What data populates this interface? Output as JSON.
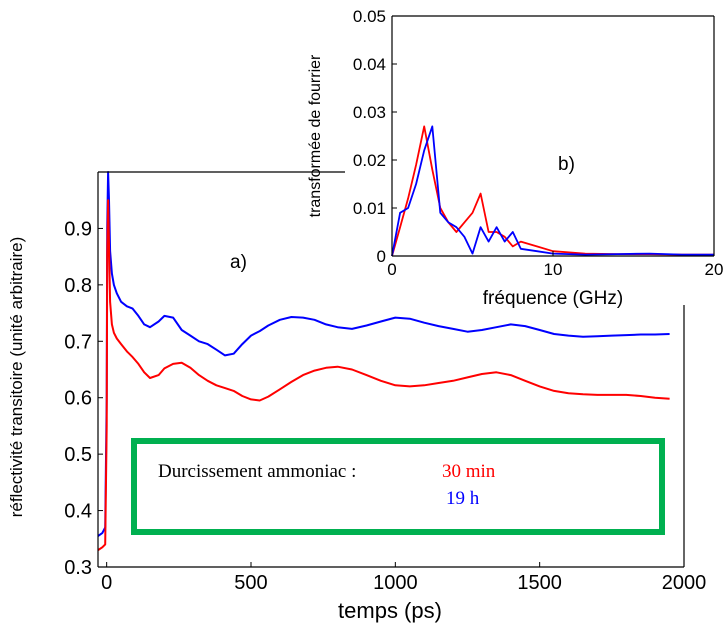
{
  "chart_data": [
    {
      "type": "line",
      "panel_label": "a)",
      "xlabel": "temps (ps)",
      "ylabel": "réflectivité transitoire (unité arbitraire)",
      "xlim": [
        -30,
        2000
      ],
      "ylim": [
        0.3,
        1.0
      ],
      "xticks": [
        "0",
        "500",
        "1000",
        "1500",
        "2000"
      ],
      "yticks": [
        "0.3",
        "0.4",
        "0.5",
        "0.6",
        "0.7",
        "0.8",
        "0.9"
      ],
      "series": [
        {
          "name": "19 h",
          "color": "#0000ff",
          "x": [
            -30,
            -15,
            -5,
            0,
            2,
            5,
            8,
            12,
            18,
            25,
            35,
            50,
            70,
            90,
            110,
            130,
            150,
            180,
            200,
            230,
            260,
            290,
            320,
            350,
            380,
            410,
            440,
            470,
            500,
            530,
            560,
            600,
            640,
            680,
            720,
            760,
            800,
            850,
            900,
            950,
            1000,
            1050,
            1100,
            1150,
            1200,
            1250,
            1300,
            1350,
            1400,
            1450,
            1500,
            1550,
            1600,
            1650,
            1700,
            1750,
            1800,
            1850,
            1900,
            1950
          ],
          "y": [
            0.355,
            0.36,
            0.37,
            0.6,
            0.9,
            1.0,
            0.95,
            0.86,
            0.82,
            0.8,
            0.785,
            0.77,
            0.762,
            0.758,
            0.745,
            0.73,
            0.725,
            0.735,
            0.745,
            0.742,
            0.72,
            0.71,
            0.7,
            0.695,
            0.685,
            0.675,
            0.678,
            0.695,
            0.71,
            0.718,
            0.728,
            0.738,
            0.743,
            0.742,
            0.738,
            0.73,
            0.725,
            0.722,
            0.728,
            0.735,
            0.742,
            0.74,
            0.733,
            0.727,
            0.722,
            0.717,
            0.72,
            0.725,
            0.73,
            0.727,
            0.72,
            0.713,
            0.71,
            0.708,
            0.709,
            0.71,
            0.711,
            0.712,
            0.712,
            0.713
          ]
        },
        {
          "name": "30 min",
          "color": "#ff0000",
          "x": [
            -30,
            -15,
            -5,
            0,
            2,
            5,
            8,
            12,
            18,
            25,
            35,
            50,
            70,
            90,
            110,
            130,
            150,
            180,
            200,
            230,
            260,
            290,
            320,
            350,
            380,
            410,
            440,
            470,
            500,
            530,
            560,
            600,
            640,
            680,
            720,
            760,
            800,
            850,
            900,
            950,
            1000,
            1050,
            1100,
            1150,
            1200,
            1250,
            1300,
            1350,
            1400,
            1450,
            1500,
            1550,
            1600,
            1650,
            1700,
            1750,
            1800,
            1850,
            1900,
            1950
          ],
          "y": [
            0.33,
            0.335,
            0.34,
            0.55,
            0.85,
            0.95,
            0.87,
            0.77,
            0.73,
            0.715,
            0.705,
            0.695,
            0.682,
            0.672,
            0.66,
            0.645,
            0.635,
            0.64,
            0.652,
            0.66,
            0.662,
            0.653,
            0.64,
            0.63,
            0.622,
            0.617,
            0.612,
            0.603,
            0.597,
            0.595,
            0.602,
            0.615,
            0.628,
            0.64,
            0.648,
            0.653,
            0.655,
            0.65,
            0.64,
            0.63,
            0.622,
            0.62,
            0.622,
            0.626,
            0.63,
            0.636,
            0.642,
            0.645,
            0.64,
            0.63,
            0.62,
            0.612,
            0.608,
            0.606,
            0.605,
            0.605,
            0.605,
            0.603,
            0.6,
            0.598
          ]
        }
      ],
      "annotation": {
        "prefix": "Durcissement ammoniac :",
        "red_label": "30 min",
        "blue_label": "19 h",
        "box_color": "#00b050"
      }
    },
    {
      "type": "line",
      "panel_label": "b)",
      "xlabel": "fréquence (GHz)",
      "ylabel": "transformée de fourrier",
      "xlim": [
        0,
        20
      ],
      "ylim": [
        0,
        0.05
      ],
      "xticks": [
        "0",
        "10",
        "20"
      ],
      "yticks": [
        "0",
        "0.01",
        "0.02",
        "0.03",
        "0.04",
        "0.05"
      ],
      "series": [
        {
          "name": "",
          "color": "#ff0000",
          "x": [
            0,
            0.5,
            1,
            1.5,
            2,
            2.5,
            3,
            3.5,
            4,
            4.5,
            5,
            5.5,
            6,
            6.5,
            7,
            7.5,
            8,
            9,
            10,
            12,
            14,
            16,
            18,
            20
          ],
          "y": [
            0,
            0.006,
            0.012,
            0.019,
            0.027,
            0.018,
            0.01,
            0.007,
            0.005,
            0.007,
            0.009,
            0.013,
            0.005,
            0.005,
            0.004,
            0.002,
            0.003,
            0.002,
            0.001,
            0.0005,
            0.0004,
            0.0004,
            0.0003,
            0.0003
          ]
        },
        {
          "name": "",
          "color": "#0000ff",
          "x": [
            0,
            0.5,
            1,
            1.5,
            2,
            2.5,
            3,
            3.5,
            4,
            4.5,
            5,
            5.5,
            6,
            6.5,
            7,
            7.5,
            8,
            9,
            10,
            12,
            14,
            16,
            18,
            20
          ],
          "y": [
            0,
            0.009,
            0.01,
            0.015,
            0.022,
            0.027,
            0.009,
            0.007,
            0.006,
            0.004,
            0.0005,
            0.006,
            0.003,
            0.006,
            0.003,
            0.005,
            0.0015,
            0.001,
            0.0005,
            0.0003,
            0.0004,
            0.0005,
            0.0003,
            0.0003
          ]
        }
      ]
    }
  ]
}
